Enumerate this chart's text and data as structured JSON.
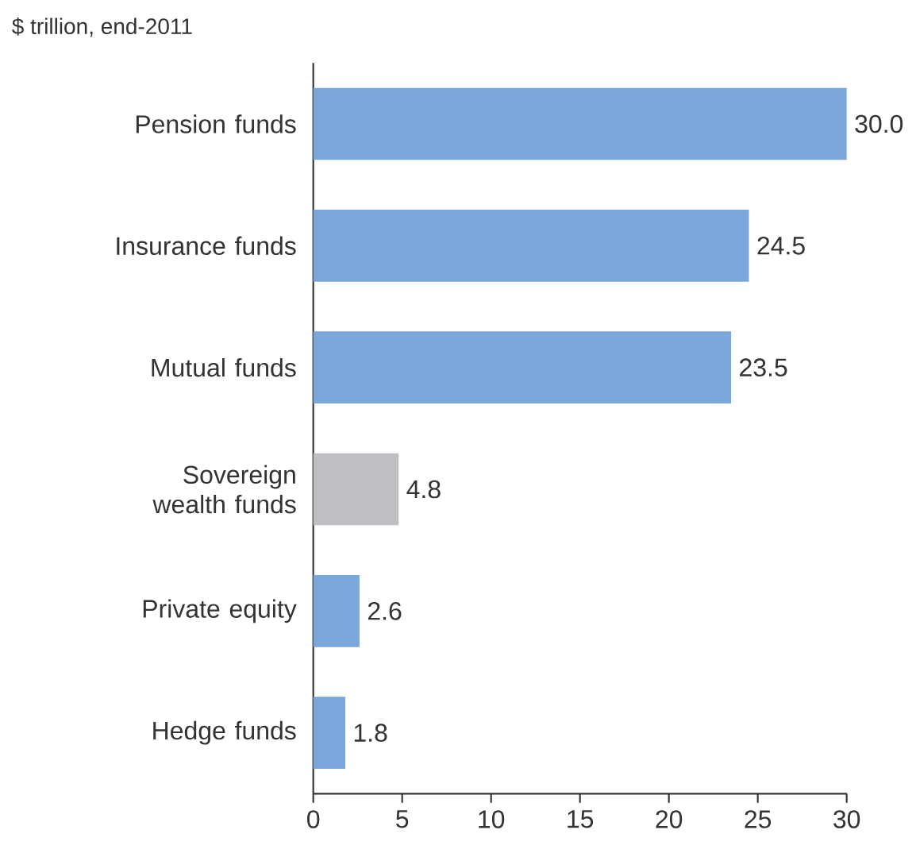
{
  "chart_data": {
    "type": "bar",
    "orientation": "horizontal",
    "title": "$ trillion, end-2011",
    "categories": [
      "Pension funds",
      "Insurance funds",
      "Mutual funds",
      "Sovereign wealth funds",
      "Private equity",
      "Hedge funds"
    ],
    "values": [
      30.0,
      24.5,
      23.5,
      4.8,
      2.6,
      1.8
    ],
    "value_labels": [
      "30.0",
      "24.5",
      "23.5",
      "4.8",
      "2.6",
      "1.8"
    ],
    "colors": [
      "#7ba7da",
      "#7ba7da",
      "#7ba7da",
      "#bfbfc3",
      "#7ba7da",
      "#7ba7da"
    ],
    "xlim": [
      0,
      30
    ],
    "xticks": [
      0,
      5,
      10,
      15,
      20,
      25,
      30
    ],
    "grid": false
  }
}
